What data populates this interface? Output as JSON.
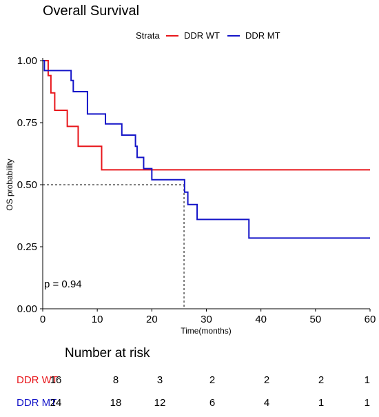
{
  "chart_data": {
    "type": "line",
    "subtype": "kaplan-meier",
    "title": "Overall Survival",
    "xlabel": "Time(months)",
    "ylabel": "OS probability",
    "xlim": [
      0,
      60
    ],
    "ylim": [
      0,
      1
    ],
    "x_ticks": [
      0,
      10,
      20,
      30,
      40,
      50,
      60
    ],
    "x_tick_labels": [
      "0",
      "10",
      "20",
      "30",
      "40",
      "50",
      "60"
    ],
    "y_ticks": [
      0,
      0.25,
      0.5,
      0.75,
      1
    ],
    "y_tick_labels": [
      "0.00",
      "0.25",
      "0.50",
      "0.75",
      "1.00"
    ],
    "grid": false,
    "legend": {
      "title": "Strata",
      "position": "top"
    },
    "series": [
      {
        "name": "DDR WT",
        "color": "#e8161b",
        "steps": [
          [
            0,
            1.0
          ],
          [
            1.0,
            0.94
          ],
          [
            1.5,
            0.87
          ],
          [
            2.2,
            0.8
          ],
          [
            4.5,
            0.735
          ],
          [
            6.5,
            0.655
          ],
          [
            10.8,
            0.56
          ],
          [
            60,
            0.56
          ]
        ]
      },
      {
        "name": "DDR MT",
        "color": "#1414c8",
        "steps": [
          [
            0,
            1.0
          ],
          [
            0.3,
            0.96
          ],
          [
            5.2,
            0.92
          ],
          [
            5.6,
            0.875
          ],
          [
            8.2,
            0.785
          ],
          [
            11.5,
            0.745
          ],
          [
            14.5,
            0.7
          ],
          [
            17.0,
            0.655
          ],
          [
            17.3,
            0.61
          ],
          [
            18.5,
            0.565
          ],
          [
            20.0,
            0.52
          ],
          [
            26.0,
            0.47
          ],
          [
            26.6,
            0.42
          ],
          [
            28.3,
            0.36
          ],
          [
            37.8,
            0.285
          ],
          [
            60,
            0.285
          ]
        ]
      }
    ],
    "median_reference": {
      "y": 0.5,
      "x": 25.9
    },
    "annotations": [
      "p = 0.94"
    ],
    "risk_table": {
      "title": "Number at risk",
      "times": [
        0,
        10,
        20,
        30,
        40,
        50,
        60
      ],
      "rows": [
        {
          "label": "DDR WT",
          "color": "#e8161b",
          "values": [
            "16",
            "8",
            "3",
            "2",
            "2",
            "2",
            "1"
          ]
        },
        {
          "label": "DDR MT",
          "color": "#1414c8",
          "values": [
            "24",
            "18",
            "12",
            "6",
            "4",
            "1",
            "1"
          ]
        }
      ]
    }
  }
}
